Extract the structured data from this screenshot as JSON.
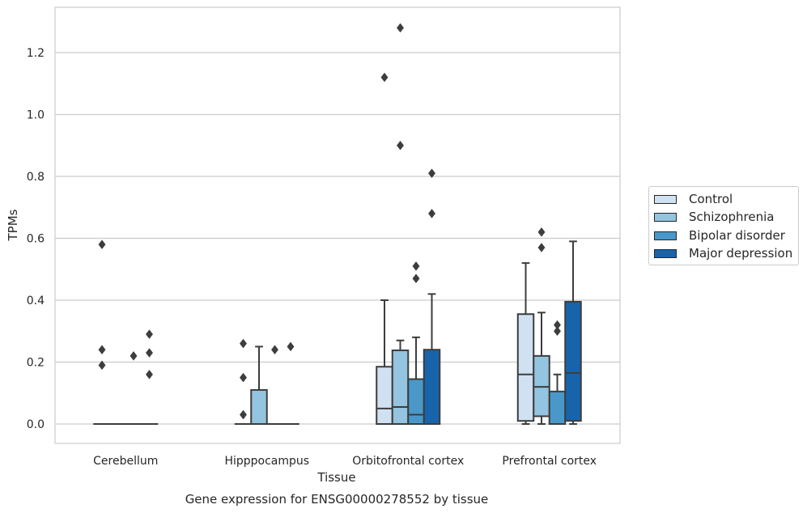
{
  "chart_data": {
    "type": "box",
    "xlabel": "Tissue",
    "ylabel": "TPMs",
    "caption": "Gene expression for ENSG00000278552 by tissue",
    "ylim": [
      -0.065,
      1.35
    ],
    "yticks": [
      "0.0",
      "0.2",
      "0.4",
      "0.6",
      "0.8",
      "1.0",
      "1.2"
    ],
    "grid": "horizontal",
    "legend_position": "outside right",
    "categories": [
      "Cerebellum",
      "Hipppocampus",
      "Orbitofrontal cortex",
      "Prefrontal cortex"
    ],
    "series": [
      {
        "name": "Control",
        "color": "#d0e1f2",
        "boxes": [
          {
            "q1": 0,
            "median": 0,
            "q3": 0,
            "whislo": 0,
            "whishi": 0,
            "fliers": [
              0.58,
              0.24,
              0.19
            ]
          },
          {
            "q1": 0,
            "median": 0,
            "q3": 0,
            "whislo": 0,
            "whishi": 0,
            "fliers": [
              0.26,
              0.15,
              0.03
            ]
          },
          {
            "q1": 0,
            "median": 0.05,
            "q3": 0.185,
            "whislo": 0,
            "whishi": 0.4,
            "fliers": [
              1.12
            ]
          },
          {
            "q1": 0.01,
            "median": 0.16,
            "q3": 0.355,
            "whislo": 0,
            "whishi": 0.52,
            "fliers": []
          }
        ]
      },
      {
        "name": "Schizophrenia",
        "color": "#94c4df",
        "boxes": [
          {
            "q1": 0,
            "median": 0,
            "q3": 0,
            "whislo": 0,
            "whishi": 0,
            "fliers": []
          },
          {
            "q1": 0,
            "median": 0,
            "q3": 0.11,
            "whislo": 0,
            "whishi": 0.25,
            "fliers": []
          },
          {
            "q1": 0,
            "median": 0.055,
            "q3": 0.238,
            "whislo": 0,
            "whishi": 0.27,
            "fliers": [
              1.28,
              0.9
            ]
          },
          {
            "q1": 0.025,
            "median": 0.12,
            "q3": 0.22,
            "whislo": 0,
            "whishi": 0.36,
            "fliers": [
              0.62,
              0.57
            ]
          }
        ]
      },
      {
        "name": "Bipolar disorder",
        "color": "#4a98c9",
        "boxes": [
          {
            "q1": 0,
            "median": 0,
            "q3": 0,
            "whislo": 0,
            "whishi": 0,
            "fliers": [
              0.22
            ]
          },
          {
            "q1": 0,
            "median": 0,
            "q3": 0,
            "whislo": 0,
            "whishi": 0,
            "fliers": [
              0.24
            ]
          },
          {
            "q1": 0,
            "median": 0.03,
            "q3": 0.145,
            "whislo": 0,
            "whishi": 0.28,
            "fliers": [
              0.51,
              0.47
            ]
          },
          {
            "q1": 0,
            "median": 0,
            "q3": 0.105,
            "whislo": 0,
            "whishi": 0.16,
            "fliers": [
              0.32,
              0.3
            ]
          }
        ]
      },
      {
        "name": "Major depression",
        "color": "#1764ab",
        "boxes": [
          {
            "q1": 0,
            "median": 0,
            "q3": 0,
            "whislo": 0,
            "whishi": 0,
            "fliers": [
              0.29,
              0.23,
              0.16
            ]
          },
          {
            "q1": 0,
            "median": 0,
            "q3": 0,
            "whislo": 0,
            "whishi": 0,
            "fliers": [
              0.25
            ]
          },
          {
            "q1": 0,
            "median": 0,
            "q3": 0.24,
            "whislo": 0,
            "whishi": 0.42,
            "fliers": [
              0.81,
              0.68
            ]
          },
          {
            "q1": 0.01,
            "median": 0.165,
            "q3": 0.395,
            "whislo": 0,
            "whishi": 0.59,
            "fliers": []
          }
        ]
      }
    ]
  }
}
